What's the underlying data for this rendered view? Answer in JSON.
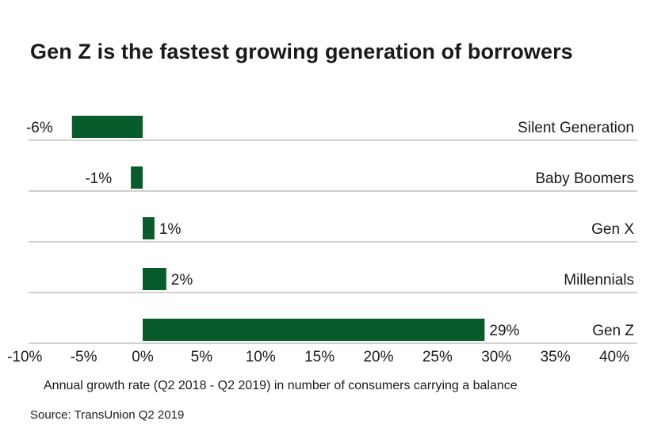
{
  "chart_data": {
    "type": "bar",
    "orientation": "horizontal",
    "title": "Gen Z is the fastest growing generation of borrowers",
    "categories": [
      "Silent Generation",
      "Baby Boomers",
      "Gen X",
      "Millennials",
      "Gen Z"
    ],
    "values": [
      -6,
      -1,
      1,
      2,
      29
    ],
    "data_labels": [
      "-6%",
      "-1%",
      "1%",
      "2%",
      "29%"
    ],
    "xlabel": "Annual growth rate (Q2 2018 - Q2 2019) in number of consumers carrying a balance",
    "ylabel": "",
    "xlim": [
      -10,
      40
    ],
    "xticks": [
      -10,
      -5,
      0,
      5,
      10,
      15,
      20,
      25,
      30,
      35,
      40
    ],
    "xtick_labels": [
      "-10%",
      "-5%",
      "0%",
      "5%",
      "10%",
      "15%",
      "20%",
      "25%",
      "30%",
      "35%",
      "40%"
    ],
    "bar_color": "#085c2b",
    "line_color": "#b3b3b3",
    "legend": "none"
  },
  "source": "Source: TransUnion Q2 2019"
}
